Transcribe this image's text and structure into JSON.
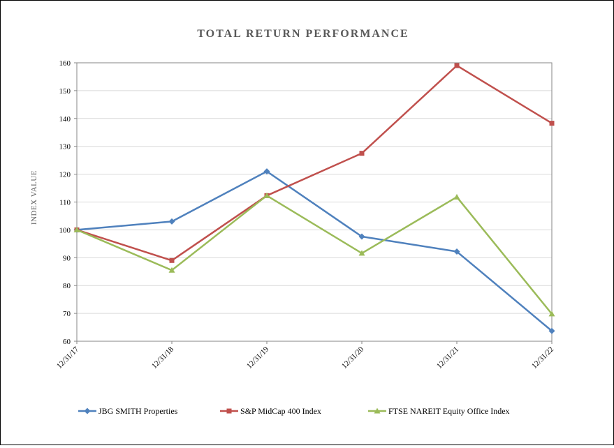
{
  "chart_data": {
    "type": "line",
    "title": "TOTAL RETURN PERFORMANCE",
    "xlabel": "",
    "ylabel": "INDEX VALUE",
    "categories": [
      "12/31/17",
      "12/31/18",
      "12/31/19",
      "12/31/20",
      "12/31/21",
      "12/31/22"
    ],
    "ylim": [
      60,
      160
    ],
    "yticks": [
      "60",
      "70",
      "80",
      "90",
      "100",
      "110",
      "120",
      "130",
      "140",
      "150",
      "160"
    ],
    "grid": true,
    "legend_position": "bottom",
    "series": [
      {
        "name": "JBG SMITH Properties",
        "values": [
          100,
          103,
          121,
          97.6,
          92.2,
          63.7
        ],
        "color": "#4F81BD",
        "marker": "diamond"
      },
      {
        "name": "S&P MidCap 400 Index",
        "values": [
          100,
          89,
          112.3,
          127.5,
          159,
          138.3
        ],
        "color": "#C0504D",
        "marker": "square"
      },
      {
        "name": "FTSE NAREIT Equity Office Index",
        "values": [
          100,
          85.5,
          112.3,
          91.6,
          111.8,
          69.8
        ],
        "color": "#9BBB59",
        "marker": "triangle"
      }
    ]
  }
}
